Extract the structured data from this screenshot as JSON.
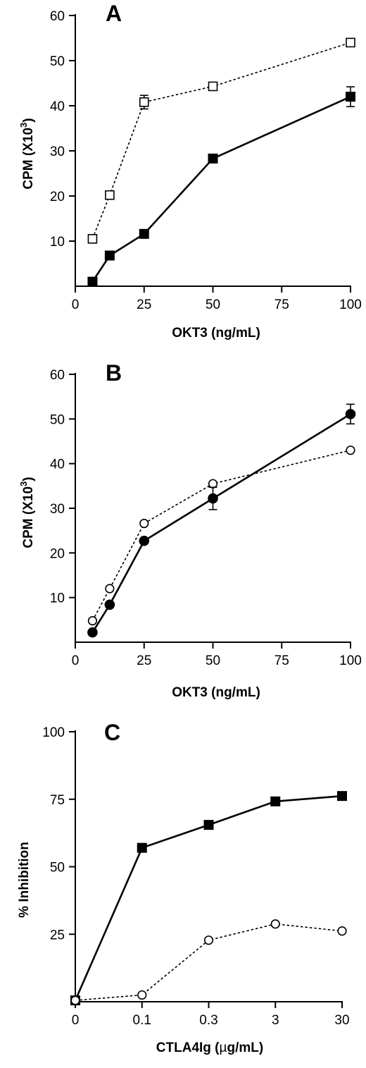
{
  "chart_data": [
    {
      "type": "line",
      "panel_label": "A",
      "xlabel": "OKT3 (ng/mL)",
      "ylabel_main": "CPM (X10",
      "ylabel_sup": "3",
      "ylabel_end": ")",
      "xlim": [
        0,
        100
      ],
      "ylim": [
        0,
        60
      ],
      "x_ticks": [
        0,
        25,
        50,
        75,
        100
      ],
      "x_tick_labels": [
        "0",
        "25",
        "50",
        "75",
        "100"
      ],
      "y_ticks": [
        10,
        20,
        30,
        40,
        50,
        60
      ],
      "y_tick_labels": [
        "10",
        "20",
        "30",
        "40",
        "50",
        "60"
      ],
      "series": [
        {
          "x": [
            6.25,
            12.5,
            25,
            50,
            100
          ],
          "values": [
            10.5,
            20.2,
            40.8,
            44.3,
            54.0
          ],
          "err": [
            0,
            0,
            1.5,
            0,
            0
          ],
          "marker": "open-square",
          "line": "dashed"
        },
        {
          "x": [
            6.25,
            12.5,
            25,
            50,
            100
          ],
          "values": [
            1.0,
            6.8,
            11.6,
            28.3,
            42.0
          ],
          "err": [
            0,
            0,
            0,
            0,
            2.2
          ],
          "marker": "filled-square",
          "line": "solid"
        }
      ]
    },
    {
      "type": "line",
      "panel_label": "B",
      "xlabel": "OKT3 (ng/mL)",
      "ylabel_main": "CPM (X10",
      "ylabel_sup": "3",
      "ylabel_end": ")",
      "xlim": [
        0,
        100
      ],
      "ylim": [
        0,
        60
      ],
      "x_ticks": [
        0,
        25,
        50,
        75,
        100
      ],
      "x_tick_labels": [
        "0",
        "25",
        "50",
        "75",
        "100"
      ],
      "y_ticks": [
        10,
        20,
        30,
        40,
        50,
        60
      ],
      "y_tick_labels": [
        "10",
        "20",
        "30",
        "40",
        "50",
        "60"
      ],
      "series": [
        {
          "x": [
            6.25,
            12.5,
            25,
            50,
            100
          ],
          "values": [
            4.8,
            12.0,
            26.6,
            35.5,
            43.0
          ],
          "err": [
            0,
            0,
            0,
            0,
            0
          ],
          "marker": "open-circle",
          "line": "dashed"
        },
        {
          "x": [
            6.25,
            12.5,
            25,
            50,
            100
          ],
          "values": [
            2.2,
            8.4,
            22.7,
            32.2,
            51.1
          ],
          "err": [
            0,
            0,
            0,
            2.5,
            2.2
          ],
          "marker": "filled-circle",
          "line": "solid"
        }
      ]
    },
    {
      "type": "line",
      "panel_label": "C",
      "xlabel_pre": "CTLA4Ig (",
      "xlabel_greek": "µ",
      "xlabel_post": "g/mL)",
      "ylabel_main": "% Inhibition",
      "ylim": [
        0,
        100
      ],
      "categories": [
        "0",
        "0.1",
        "0.3",
        "3",
        "30"
      ],
      "y_ticks": [
        25,
        50,
        75,
        100
      ],
      "y_tick_labels": [
        "25",
        "50",
        "75",
        "100"
      ],
      "series": [
        {
          "values": [
            0.5,
            57,
            65.5,
            74.2,
            76.2
          ],
          "marker": "filled-square",
          "line": "solid"
        },
        {
          "values": [
            0.5,
            2.5,
            22.8,
            28.8,
            26.2
          ],
          "marker": "open-circle",
          "line": "dashed"
        }
      ]
    }
  ]
}
